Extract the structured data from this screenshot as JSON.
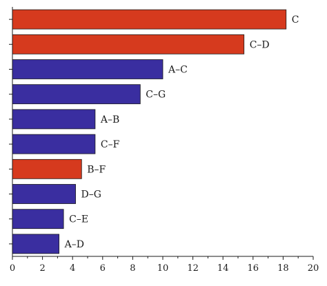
{
  "chart_data": {
    "type": "bar",
    "orientation": "horizontal",
    "categories": [
      "C",
      "C–D",
      "A–C",
      "C–G",
      "A–B",
      "C–F",
      "B–F",
      "D–G",
      "C–E",
      "A–D"
    ],
    "values": [
      18.2,
      15.4,
      10.0,
      8.5,
      5.5,
      5.5,
      4.6,
      4.2,
      3.4,
      3.1
    ],
    "bar_colors": [
      "#d63a1e",
      "#d63a1e",
      "#3a2ea0",
      "#3a2ea0",
      "#3a2ea0",
      "#3a2ea0",
      "#d63a1e",
      "#3a2ea0",
      "#3a2ea0",
      "#3a2ea0"
    ],
    "xlim": [
      0,
      20
    ],
    "xticks": [
      0,
      2,
      4,
      6,
      8,
      10,
      12,
      14,
      16,
      18,
      20
    ],
    "title": "",
    "xlabel": "",
    "ylabel": "",
    "grid": false,
    "legend": "none",
    "colors": {
      "red": "#d63a1e",
      "blue": "#3a2ea0",
      "axis": "#1a1a1a"
    }
  }
}
